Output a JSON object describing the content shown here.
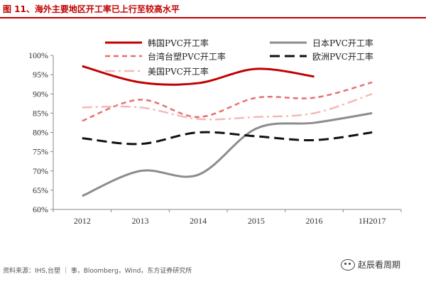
{
  "figure": {
    "title": "图 11、海外主要地区开工率已上行至较高水平",
    "source": "资料来源：IHS,台塑 ｜ 事，Bloomberg，Wind，东方证券研究所",
    "watermark": "赵辰看周期"
  },
  "chart_data": {
    "type": "line",
    "title": "",
    "xlabel": "",
    "ylabel": "",
    "categories": [
      "2012",
      "2013",
      "2014",
      "2015",
      "2016",
      "1H2017"
    ],
    "ylim": [
      60,
      100
    ],
    "yticks": [
      "60%",
      "65%",
      "70%",
      "75%",
      "80%",
      "85%",
      "90%",
      "95%",
      "100%"
    ],
    "grid": false,
    "legend_position": "top",
    "series": [
      {
        "name": "韩国PVC开工率",
        "color": "#c00000",
        "style": "solid",
        "smooth": true,
        "values": [
          97.2,
          93.0,
          92.8,
          96.5,
          94.5,
          null
        ]
      },
      {
        "name": "日本PVC开工率",
        "color": "#8c8c8c",
        "style": "solid",
        "smooth": true,
        "values": [
          63.5,
          70.0,
          69.0,
          81.0,
          82.5,
          85.0
        ]
      },
      {
        "name": "台湾台塑PVC开工率",
        "color": "#e86f6f",
        "style": "dashed",
        "smooth": true,
        "values": [
          83.0,
          88.5,
          84.0,
          89.0,
          89.0,
          93.0
        ]
      },
      {
        "name": "欧洲PVC开工率",
        "color": "#111111",
        "style": "longdash",
        "smooth": true,
        "values": [
          78.5,
          77.0,
          80.0,
          79.0,
          78.0,
          80.0
        ]
      },
      {
        "name": "美国PVC开工率",
        "color": "#f4b8b8",
        "style": "dashdot",
        "smooth": true,
        "values": [
          86.5,
          86.5,
          83.5,
          84.0,
          85.0,
          90.0
        ]
      }
    ]
  }
}
